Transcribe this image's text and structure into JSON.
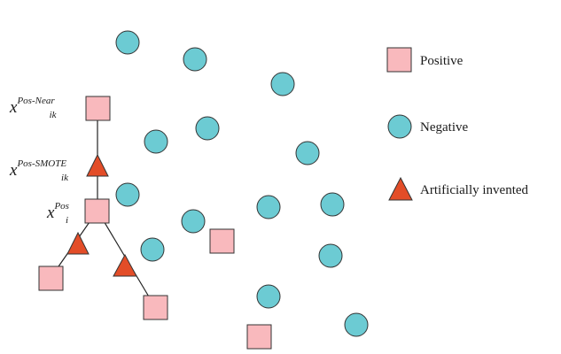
{
  "colors": {
    "positive_fill": "#f9b9bd",
    "negative_fill": "#6ccbd3",
    "invented_fill": "#e34d28",
    "stroke": "#333333",
    "line": "#222222"
  },
  "legend": {
    "positive": "Positive",
    "negative": "Negative",
    "invented": "Artificially invented"
  },
  "annotations": {
    "near": {
      "base": "x",
      "sup": "Pos-Near",
      "sub": "ik"
    },
    "smote": {
      "base": "x",
      "sup": "Pos-SMOTE",
      "sub": "ik"
    },
    "pos": {
      "base": "x",
      "sup": "Pos",
      "sub": "i"
    }
  }
}
